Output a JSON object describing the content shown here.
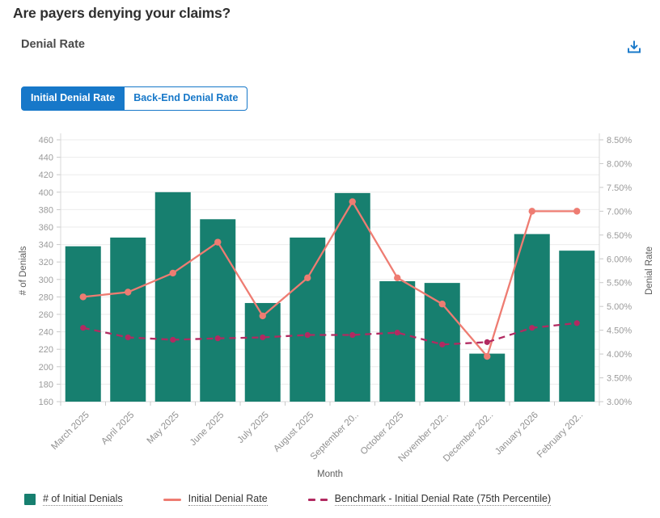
{
  "header": {
    "title": "Are payers denying your claims?"
  },
  "section": {
    "title": "Denial Rate"
  },
  "toolbar": {
    "download_icon": "download-icon"
  },
  "tabs": [
    {
      "label": "Initial Denial Rate",
      "active": true
    },
    {
      "label": "Back-End Denial Rate",
      "active": false
    }
  ],
  "colors": {
    "accent_blue": "#1778c9",
    "bar_teal": "#177f6f",
    "line_salmon": "#ee7c72",
    "benchmark_magenta": "#b22a61",
    "gridline": "#ebebeb",
    "axis_line": "#d8d8d8",
    "tick_text": "#9b9b9b"
  },
  "chart_data": {
    "type": "bar",
    "title": "Denial Rate",
    "xlabel": "Month",
    "grid": true,
    "legend_position": "bottom",
    "categories": [
      "March 2025",
      "April 2025",
      "May 2025",
      "June 2025",
      "July 2025",
      "August 2025",
      "September 2025",
      "October 2025",
      "November 2025",
      "December 2025",
      "January 2026",
      "February 2026"
    ],
    "categories_display": [
      "March 2025",
      "April 2025",
      "May 2025",
      "June 2025",
      "July 2025",
      "August 2025",
      "September 20..",
      "October 2025",
      "November 202..",
      "December 202..",
      "January 2026",
      "February 202.."
    ],
    "left_axis": {
      "label": "# of Denials",
      "min": 160,
      "max": 460,
      "step": 20
    },
    "right_axis": {
      "label": "Denial Rate",
      "min": 3.0,
      "max": 8.5,
      "step": 0.5,
      "format": "percent"
    },
    "series": [
      {
        "name": "# of Initial Denials",
        "type": "bar",
        "axis": "left",
        "color": "#177f6f",
        "values": [
          338,
          348,
          400,
          369,
          273,
          348,
          399,
          298,
          296,
          215,
          352,
          333
        ]
      },
      {
        "name": "Initial Denial Rate",
        "type": "line",
        "axis": "right",
        "color": "#ee7c72",
        "values": [
          5.2,
          5.3,
          5.7,
          6.35,
          4.8,
          5.6,
          7.2,
          5.6,
          5.05,
          3.95,
          7.0,
          7.0
        ]
      },
      {
        "name": "Benchmark - Initial Denial Rate (75th Percentile)",
        "type": "dashed-line",
        "axis": "right",
        "color": "#b22a61",
        "values": [
          4.55,
          4.35,
          4.3,
          4.33,
          4.35,
          4.4,
          4.4,
          4.45,
          4.2,
          4.25,
          4.55,
          4.65
        ]
      }
    ]
  }
}
